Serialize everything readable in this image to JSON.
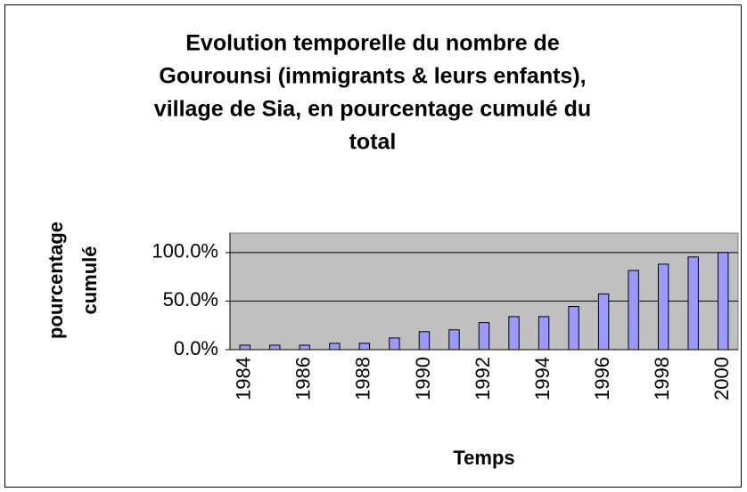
{
  "chart_data": {
    "type": "bar",
    "title": [
      "Evolution temporelle du nombre de",
      "Gourounsi (immigrants & leurs enfants),",
      "village de Sia, en pourcentage cumulé du",
      "total"
    ],
    "x_label": "Temps",
    "y_label": [
      "pourcentage",
      "cumulé"
    ],
    "categories": [
      "1984",
      null,
      "1986",
      null,
      "1988",
      null,
      "1990",
      null,
      "1992",
      null,
      "1994",
      null,
      "1996",
      null,
      "1998",
      null,
      "2000"
    ],
    "values": [
      4.6,
      4.6,
      4.6,
      6.5,
      6.5,
      12,
      18.5,
      20.4,
      27.8,
      34,
      34,
      44.4,
      57.4,
      81.5,
      88,
      95.4,
      100
    ],
    "color": "#9999ff",
    "ylim": [
      0,
      120
    ],
    "yticks": [
      {
        "value": 0,
        "label": "0.0%"
      },
      {
        "value": 50,
        "label": "50.0%"
      },
      {
        "value": 100,
        "label": "100.0%"
      }
    ],
    "grid": true
  }
}
